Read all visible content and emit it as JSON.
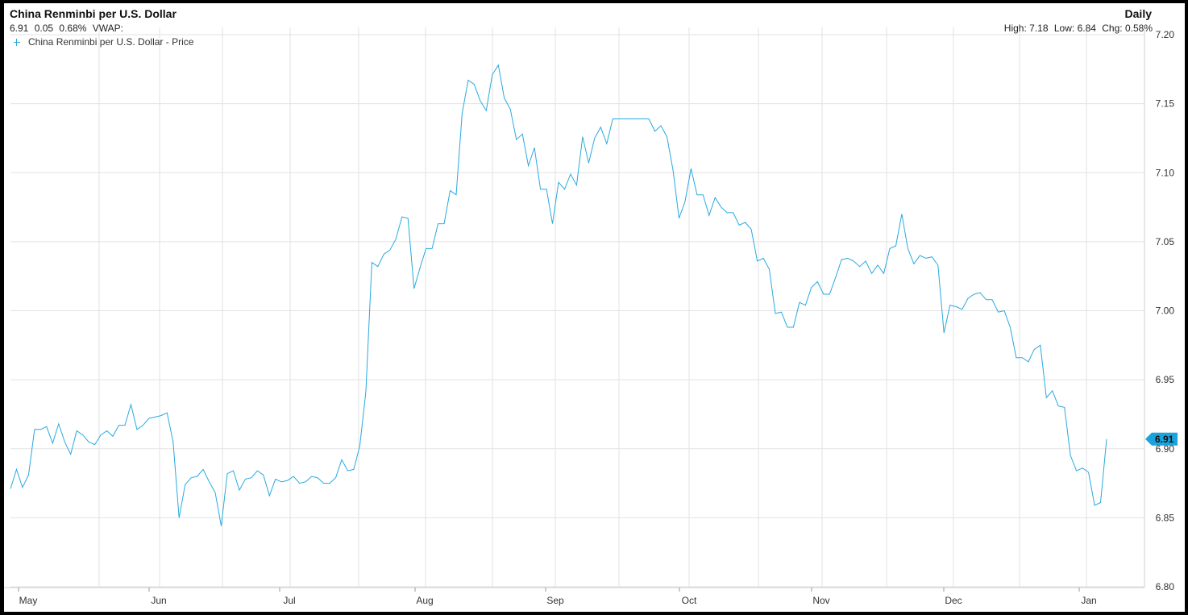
{
  "header": {
    "title": "China Renminbi per U.S. Dollar",
    "last": "6.91",
    "change": "0.05",
    "change_pct": "0.68%",
    "vwap_label": "VWAP:",
    "frequency": "Daily",
    "high_label": "High:",
    "high": "7.18",
    "low_label": "Low:",
    "low": "6.84",
    "chg_label": "Chg:",
    "chg": "0.58%"
  },
  "colors": {
    "line": "#29a9e0",
    "grid": "#e2e2e2",
    "badge": "#1aa3dc"
  },
  "chart_data": {
    "type": "line",
    "title": "China Renminbi per U.S. Dollar",
    "xlabel": "",
    "ylabel": "",
    "ylim": [
      6.8,
      7.2
    ],
    "y_ticks": [
      "7.20",
      "7.15",
      "7.10",
      "7.05",
      "7.00",
      "6.95",
      "6.90",
      "6.85",
      "6.80"
    ],
    "x_ticks": [
      "May",
      "Jun",
      "Jul",
      "Aug",
      "Sep",
      "Oct",
      "Nov",
      "Dec",
      "Jan"
    ],
    "grid": true,
    "legend_position": "top-left",
    "last_value_label": "6.91",
    "series": [
      {
        "name": "China Renminbi per U.S. Dollar - Price",
        "values": [
          6.871,
          6.885,
          6.872,
          6.881,
          6.914,
          6.914,
          6.916,
          6.904,
          6.918,
          6.905,
          6.896,
          6.913,
          6.91,
          6.905,
          6.903,
          6.91,
          6.913,
          6.909,
          6.917,
          6.917,
          6.932,
          6.914,
          6.917,
          6.922,
          6.923,
          6.924,
          6.926,
          6.905,
          6.85,
          6.874,
          6.879,
          6.88,
          6.885,
          6.876,
          6.868,
          6.844,
          6.882,
          6.884,
          6.87,
          6.878,
          6.879,
          6.884,
          6.881,
          6.866,
          6.878,
          6.876,
          6.877,
          6.88,
          6.875,
          6.876,
          6.88,
          6.879,
          6.875,
          6.875,
          6.879,
          6.892,
          6.884,
          6.885,
          6.902,
          6.941,
          7.035,
          7.032,
          7.041,
          7.044,
          7.052,
          7.068,
          7.067,
          7.016,
          7.031,
          7.045,
          7.045,
          7.063,
          7.063,
          7.087,
          7.084,
          7.143,
          7.167,
          7.164,
          7.152,
          7.145,
          7.171,
          7.178,
          7.154,
          7.146,
          7.124,
          7.128,
          7.105,
          7.118,
          7.088,
          7.088,
          7.063,
          7.093,
          7.088,
          7.099,
          7.091,
          7.126,
          7.107,
          7.125,
          7.133,
          7.121,
          7.139,
          7.139,
          7.139,
          7.139,
          7.139,
          7.139,
          7.139,
          7.13,
          7.134,
          7.126,
          7.102,
          7.067,
          7.079,
          7.103,
          7.084,
          7.084,
          7.069,
          7.082,
          7.075,
          7.071,
          7.071,
          7.062,
          7.064,
          7.059,
          7.036,
          7.038,
          7.03,
          6.998,
          6.999,
          6.988,
          6.988,
          7.006,
          7.004,
          7.017,
          7.021,
          7.012,
          7.012,
          7.024,
          7.037,
          7.038,
          7.036,
          7.032,
          7.036,
          7.027,
          7.033,
          7.027,
          7.045,
          7.047,
          7.07,
          7.045,
          7.034,
          7.04,
          7.038,
          7.039,
          7.033,
          6.984,
          7.004,
          7.003,
          7.001,
          7.009,
          7.012,
          7.013,
          7.008,
          7.008,
          6.999,
          7.0,
          6.988,
          6.966,
          6.966,
          6.963,
          6.972,
          6.975,
          6.937,
          6.942,
          6.931,
          6.93,
          6.895,
          6.884,
          6.886,
          6.883,
          6.859,
          6.861,
          6.907
        ]
      }
    ]
  }
}
